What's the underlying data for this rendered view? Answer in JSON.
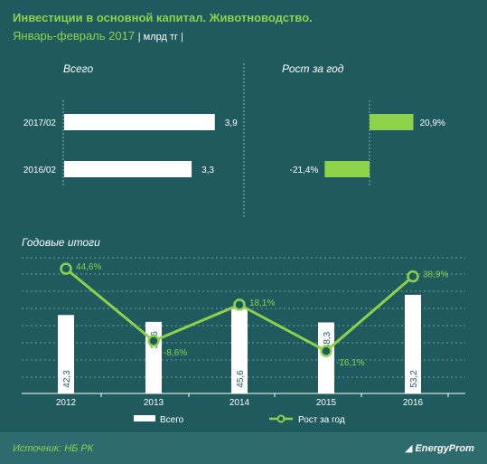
{
  "header": {
    "title": "Инвестиции в основной капитал. Животноводство.",
    "subtitle": "Январь-февраль 2017",
    "units": "| млрд тг |"
  },
  "footer": {
    "source": "Источник: НБ РК",
    "brand": "EnergyProm"
  },
  "colors": {
    "background": "#1f5a5f",
    "bar": "#ffffff",
    "accent": "#8ed24a"
  },
  "chart_data": [
    {
      "type": "bar",
      "orientation": "horizontal",
      "section_title": "Всего",
      "categories": [
        "2017/02",
        "2016/02"
      ],
      "values": [
        3.9,
        3.3
      ],
      "value_labels": [
        "3,9",
        "3,3"
      ]
    },
    {
      "type": "bar",
      "orientation": "horizontal",
      "section_title": "Рост за год",
      "categories": [
        "2017/02",
        "2016/02"
      ],
      "values": [
        20.9,
        -21.4
      ],
      "value_labels": [
        "20,9%",
        "-21,4%"
      ]
    },
    {
      "type": "bar+line",
      "section_title": "Годовые итоги",
      "categories": [
        "2012",
        "2013",
        "2014",
        "2015",
        "2016"
      ],
      "series": [
        {
          "name": "Всего",
          "type": "bar",
          "values": [
            42.3,
            38.6,
            45.6,
            38.3,
            53.2
          ],
          "value_labels": [
            "42,3",
            "38,6",
            "45,6",
            "38,3",
            "53,2"
          ]
        },
        {
          "name": "Рост за год",
          "type": "line",
          "values": [
            44.6,
            -8.6,
            18.1,
            -16.1,
            38.9
          ],
          "value_labels": [
            "44,6%",
            "-8,6%",
            "18,1%",
            "-16,1%",
            "38,9%"
          ]
        }
      ],
      "legend": "bottom"
    }
  ]
}
